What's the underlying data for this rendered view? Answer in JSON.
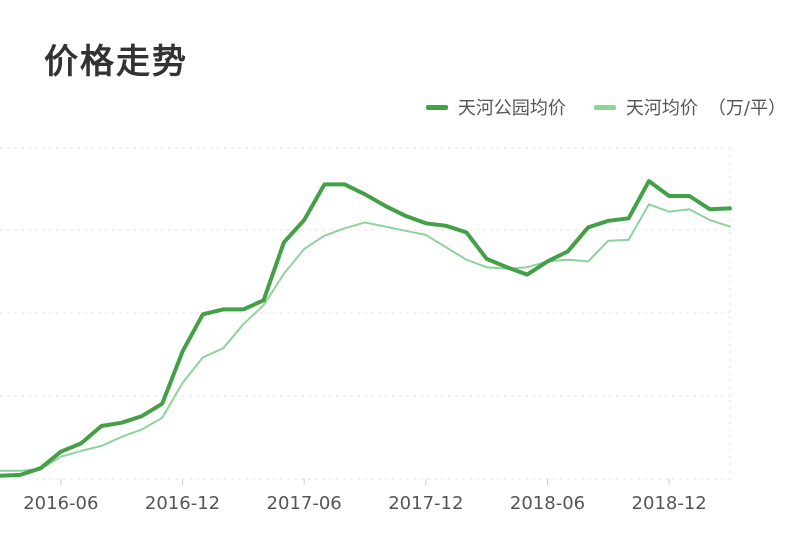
{
  "title": "价格走势",
  "chart_data": {
    "type": "line",
    "title": "价格走势",
    "xlabel": "",
    "ylabel": "",
    "x_ticks": [
      "2016-06",
      "2016-12",
      "2017-06",
      "2017-12",
      "2018-06",
      "2018-12"
    ],
    "x_range": [
      "2016-03",
      "2019-01"
    ],
    "y_ticks_labels_visible": false,
    "grid": "horizontal dashed",
    "legend_position": "top-right",
    "legend_suffix": "（万/平）",
    "series": [
      {
        "name": "天河公园均价",
        "color": "#43a047",
        "width": 4,
        "points": [
          [
            "2016-03",
            0.4
          ],
          [
            "2016-04",
            0.5
          ],
          [
            "2016-05",
            1.3
          ],
          [
            "2016-06",
            3.3
          ],
          [
            "2016-07",
            4.3
          ],
          [
            "2016-08",
            6.4
          ],
          [
            "2016-09",
            6.8
          ],
          [
            "2016-10",
            7.6
          ],
          [
            "2016-11",
            9.1
          ],
          [
            "2016-12",
            15.4
          ],
          [
            "2017-01",
            19.9
          ],
          [
            "2017-02",
            20.5
          ],
          [
            "2017-03",
            20.5
          ],
          [
            "2017-04",
            21.6
          ],
          [
            "2017-05",
            28.6
          ],
          [
            "2017-06",
            31.3
          ],
          [
            "2017-07",
            35.6
          ],
          [
            "2017-08",
            35.6
          ],
          [
            "2017-09",
            34.4
          ],
          [
            "2017-10",
            33.0
          ],
          [
            "2017-11",
            31.8
          ],
          [
            "2017-12",
            30.9
          ],
          [
            "2018-01",
            30.6
          ],
          [
            "2018-02",
            29.8
          ],
          [
            "2018-03",
            26.6
          ],
          [
            "2018-04",
            25.6
          ],
          [
            "2018-05",
            24.7
          ],
          [
            "2018-06",
            26.3
          ],
          [
            "2018-07",
            27.5
          ],
          [
            "2018-08",
            30.4
          ],
          [
            "2018-09",
            31.2
          ],
          [
            "2018-10",
            31.5
          ],
          [
            "2018-11",
            36.0
          ],
          [
            "2018-12",
            34.2
          ],
          [
            "2019-01",
            34.2
          ],
          [
            "2019-02",
            32.6
          ],
          [
            "2019-03",
            32.7
          ]
        ]
      },
      {
        "name": "天河均价",
        "color": "#8ed39c",
        "width": 2,
        "points": [
          [
            "2016-03",
            1.0
          ],
          [
            "2016-04",
            1.0
          ],
          [
            "2016-05",
            1.2
          ],
          [
            "2016-06",
            2.7
          ],
          [
            "2016-07",
            3.4
          ],
          [
            "2016-08",
            4.0
          ],
          [
            "2016-09",
            5.1
          ],
          [
            "2016-10",
            6.0
          ],
          [
            "2016-11",
            7.4
          ],
          [
            "2016-12",
            11.6
          ],
          [
            "2017-01",
            14.7
          ],
          [
            "2017-02",
            15.8
          ],
          [
            "2017-03",
            18.7
          ],
          [
            "2017-04",
            21.0
          ],
          [
            "2017-05",
            24.8
          ],
          [
            "2017-06",
            27.8
          ],
          [
            "2017-07",
            29.4
          ],
          [
            "2017-08",
            30.3
          ],
          [
            "2017-09",
            31.0
          ],
          [
            "2017-10",
            30.5
          ],
          [
            "2017-11",
            30.0
          ],
          [
            "2017-12",
            29.5
          ],
          [
            "2018-01",
            28.0
          ],
          [
            "2018-02",
            26.5
          ],
          [
            "2018-03",
            25.6
          ],
          [
            "2018-04",
            25.4
          ],
          [
            "2018-05",
            25.6
          ],
          [
            "2018-06",
            26.3
          ],
          [
            "2018-07",
            26.5
          ],
          [
            "2018-08",
            26.3
          ],
          [
            "2018-09",
            28.8
          ],
          [
            "2018-10",
            28.9
          ],
          [
            "2018-11",
            33.2
          ],
          [
            "2018-12",
            32.3
          ],
          [
            "2019-01",
            32.6
          ],
          [
            "2019-02",
            31.3
          ],
          [
            "2019-03",
            30.5
          ]
        ]
      }
    ]
  }
}
